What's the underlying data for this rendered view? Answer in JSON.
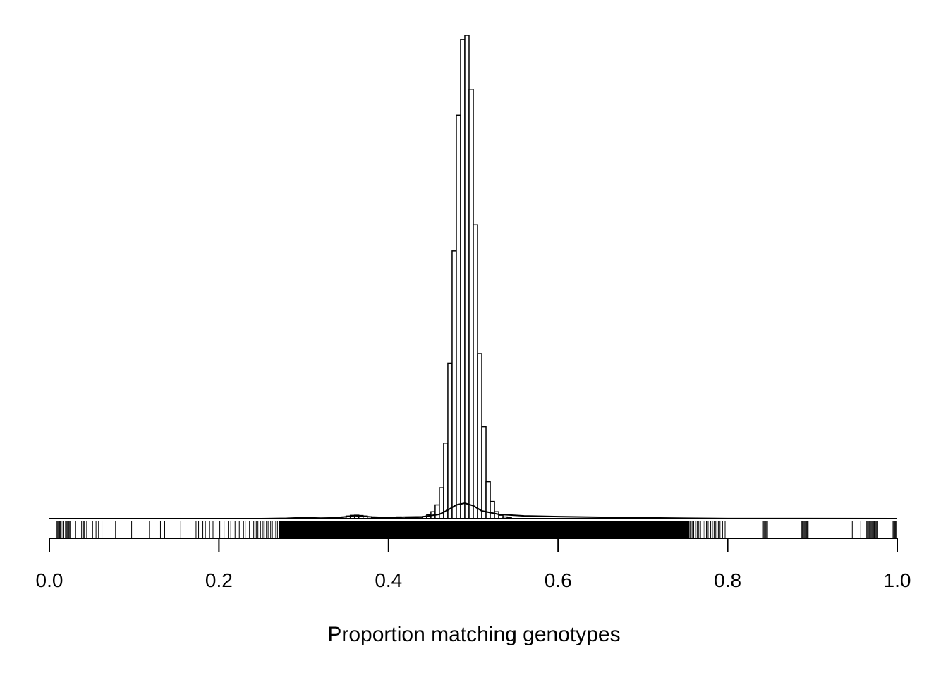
{
  "chart_data": {
    "type": "bar",
    "subtype": "histogram",
    "title": "",
    "xlabel": "Proportion matching genotypes",
    "ylabel": "",
    "xlim": [
      0.0,
      1.0
    ],
    "x_ticks": [
      "0.0",
      "0.2",
      "0.4",
      "0.6",
      "0.8",
      "1.0"
    ],
    "y_axis_shown": false,
    "grid": false,
    "legend": "none",
    "bin_width": 0.005,
    "bins": [
      [
        0.33,
        0.335,
        0.3
      ],
      [
        0.335,
        0.34,
        0.6
      ],
      [
        0.34,
        0.345,
        1.2
      ],
      [
        0.345,
        0.35,
        2.0
      ],
      [
        0.35,
        0.355,
        3.0
      ],
      [
        0.355,
        0.36,
        3.8
      ],
      [
        0.36,
        0.365,
        4.0
      ],
      [
        0.365,
        0.37,
        3.6
      ],
      [
        0.37,
        0.375,
        3.0
      ],
      [
        0.375,
        0.38,
        2.2
      ],
      [
        0.38,
        0.385,
        1.4
      ],
      [
        0.385,
        0.39,
        0.8
      ],
      [
        0.39,
        0.395,
        0.7
      ],
      [
        0.395,
        0.4,
        0.9
      ],
      [
        0.4,
        0.405,
        1.4
      ],
      [
        0.405,
        0.41,
        1.8
      ],
      [
        0.41,
        0.415,
        2.0
      ],
      [
        0.415,
        0.42,
        1.8
      ],
      [
        0.42,
        0.425,
        1.4
      ],
      [
        0.425,
        0.43,
        1.0
      ],
      [
        0.43,
        0.435,
        0.9
      ],
      [
        0.435,
        0.44,
        1.5
      ],
      [
        0.44,
        0.445,
        2.5
      ],
      [
        0.445,
        0.45,
        4.5
      ],
      [
        0.45,
        0.455,
        8
      ],
      [
        0.455,
        0.46,
        16
      ],
      [
        0.46,
        0.465,
        36
      ],
      [
        0.465,
        0.47,
        88
      ],
      [
        0.47,
        0.475,
        181
      ],
      [
        0.475,
        0.48,
        312
      ],
      [
        0.48,
        0.485,
        470
      ],
      [
        0.485,
        0.49,
        558
      ],
      [
        0.49,
        0.495,
        563
      ],
      [
        0.495,
        0.5,
        500
      ],
      [
        0.5,
        0.505,
        342
      ],
      [
        0.505,
        0.51,
        192
      ],
      [
        0.51,
        0.515,
        107
      ],
      [
        0.515,
        0.52,
        43
      ],
      [
        0.52,
        0.525,
        20
      ],
      [
        0.525,
        0.53,
        8
      ],
      [
        0.53,
        0.535,
        4
      ],
      [
        0.535,
        0.54,
        2
      ],
      [
        0.54,
        0.545,
        1
      ]
    ],
    "density_curve": [
      [
        0.0,
        0
      ],
      [
        0.25,
        0
      ],
      [
        0.28,
        0.4
      ],
      [
        0.3,
        1.2
      ],
      [
        0.32,
        0.6
      ],
      [
        0.34,
        1.0
      ],
      [
        0.36,
        3.5
      ],
      [
        0.38,
        2.0
      ],
      [
        0.4,
        1.2
      ],
      [
        0.42,
        1.8
      ],
      [
        0.44,
        2.2
      ],
      [
        0.46,
        5
      ],
      [
        0.47,
        10
      ],
      [
        0.48,
        16
      ],
      [
        0.49,
        18
      ],
      [
        0.5,
        15
      ],
      [
        0.51,
        9
      ],
      [
        0.53,
        5
      ],
      [
        0.56,
        3.2
      ],
      [
        0.6,
        2.4
      ],
      [
        0.65,
        1.6
      ],
      [
        0.7,
        1.0
      ],
      [
        0.75,
        0.5
      ],
      [
        0.8,
        0.1
      ],
      [
        1.0,
        0
      ]
    ],
    "rug": {
      "dense_range": [
        0.271,
        0.755
      ],
      "sparse_points": [
        0.008,
        0.009,
        0.01,
        0.011,
        0.012,
        0.013,
        0.014,
        0.016,
        0.017,
        0.019,
        0.02,
        0.021,
        0.022,
        0.023,
        0.024,
        0.025,
        0.031,
        0.038,
        0.04,
        0.041,
        0.042,
        0.044,
        0.051,
        0.055,
        0.058,
        0.062,
        0.078,
        0.097,
        0.118,
        0.131,
        0.136,
        0.155,
        0.173,
        0.176,
        0.181,
        0.184,
        0.189,
        0.193,
        0.201,
        0.206,
        0.211,
        0.214,
        0.219,
        0.224,
        0.229,
        0.231,
        0.236,
        0.241,
        0.244,
        0.246,
        0.249,
        0.252,
        0.254,
        0.256,
        0.258,
        0.261,
        0.263,
        0.265,
        0.267,
        0.269,
        0.756,
        0.758,
        0.76,
        0.762,
        0.764,
        0.766,
        0.768,
        0.771,
        0.773,
        0.775,
        0.777,
        0.78,
        0.782,
        0.784,
        0.786,
        0.789,
        0.791,
        0.794,
        0.797,
        0.842,
        0.843,
        0.844,
        0.845,
        0.846,
        0.847,
        0.887,
        0.888,
        0.889,
        0.89,
        0.891,
        0.892,
        0.893,
        0.894,
        0.895,
        0.947,
        0.957,
        0.964,
        0.965,
        0.966,
        0.967,
        0.968,
        0.969,
        0.97,
        0.971,
        0.972,
        0.973,
        0.974,
        0.975,
        0.976,
        0.977,
        0.995,
        0.996,
        0.997,
        0.998,
        0.999
      ]
    }
  }
}
